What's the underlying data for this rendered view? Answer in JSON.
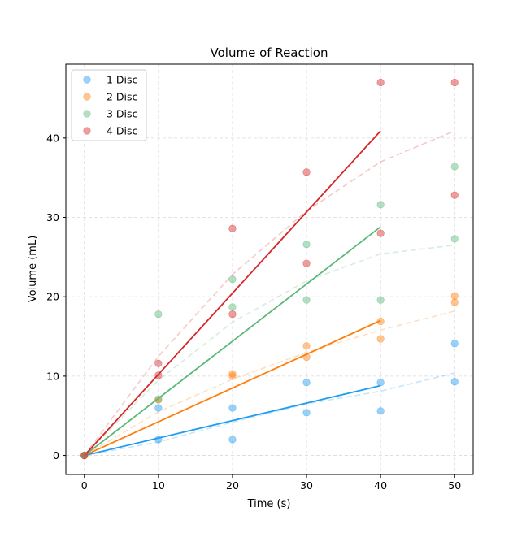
{
  "chart_data": {
    "type": "scatter",
    "title": "Volume of Reaction",
    "xlabel": "Time (s)",
    "ylabel": "Volume (mL)",
    "xlim": [
      -2.5,
      52.5
    ],
    "ylim": [
      -2.4,
      49.3
    ],
    "xticks": [
      0,
      10,
      20,
      30,
      40,
      50
    ],
    "yticks": [
      0,
      10,
      20,
      30,
      40
    ],
    "grid": true,
    "legend_position": "top-left",
    "series": [
      {
        "name": "1 Disc",
        "color": "#1f9bf0",
        "points": [
          [
            0,
            0
          ],
          [
            10,
            2.0
          ],
          [
            10,
            6.0
          ],
          [
            20,
            2.0
          ],
          [
            20,
            6.0
          ],
          [
            30,
            5.4
          ],
          [
            30,
            9.2
          ],
          [
            40,
            5.6
          ],
          [
            40,
            9.2
          ],
          [
            50,
            9.3
          ],
          [
            50,
            14.1
          ]
        ],
        "fit": [
          [
            0,
            0
          ],
          [
            40,
            8.8
          ]
        ],
        "trend": [
          [
            0,
            0
          ],
          [
            10,
            1.7
          ],
          [
            20,
            4.2
          ],
          [
            30,
            6.5
          ],
          [
            40,
            8.1
          ],
          [
            50,
            10.4
          ]
        ]
      },
      {
        "name": "2 Disc",
        "color": "#ff7f0e",
        "points": [
          [
            0,
            0
          ],
          [
            10,
            7.0
          ],
          [
            20,
            10.0
          ],
          [
            20,
            10.3
          ],
          [
            30,
            12.4
          ],
          [
            30,
            13.8
          ],
          [
            40,
            14.7
          ],
          [
            40,
            16.9
          ],
          [
            50,
            19.3
          ],
          [
            50,
            20.1
          ]
        ],
        "fit": [
          [
            0,
            0
          ],
          [
            40,
            17.0
          ]
        ],
        "trend": [
          [
            0,
            0
          ],
          [
            10,
            5.5
          ],
          [
            20,
            9.6
          ],
          [
            30,
            13.0
          ],
          [
            40,
            15.8
          ],
          [
            50,
            18.2
          ]
        ]
      },
      {
        "name": "3 Disc",
        "color": "#5cb87a",
        "points": [
          [
            0,
            0
          ],
          [
            10,
            7.1
          ],
          [
            10,
            17.8
          ],
          [
            20,
            18.7
          ],
          [
            20,
            22.2
          ],
          [
            30,
            19.6
          ],
          [
            30,
            26.6
          ],
          [
            40,
            19.6
          ],
          [
            40,
            31.6
          ],
          [
            50,
            27.3
          ],
          [
            50,
            36.4
          ]
        ],
        "fit": [
          [
            0,
            0
          ],
          [
            40,
            28.8
          ]
        ],
        "trend": [
          [
            0,
            0
          ],
          [
            10,
            9.5
          ],
          [
            20,
            16.8
          ],
          [
            30,
            22.0
          ],
          [
            40,
            25.4
          ],
          [
            50,
            26.5
          ]
        ]
      },
      {
        "name": "4 Disc",
        "color": "#d62728",
        "points": [
          [
            0,
            0
          ],
          [
            10,
            10.1
          ],
          [
            10,
            11.6
          ],
          [
            20,
            17.8
          ],
          [
            20,
            28.6
          ],
          [
            30,
            24.2
          ],
          [
            30,
            35.7
          ],
          [
            40,
            28.0
          ],
          [
            40,
            47.0
          ],
          [
            50,
            32.8
          ],
          [
            50,
            47.0
          ]
        ],
        "fit": [
          [
            0,
            0
          ],
          [
            40,
            40.9
          ]
        ],
        "trend": [
          [
            0,
            0
          ],
          [
            10,
            12.5
          ],
          [
            20,
            22.8
          ],
          [
            30,
            30.8
          ],
          [
            40,
            37.0
          ],
          [
            50,
            40.9
          ]
        ]
      }
    ]
  }
}
